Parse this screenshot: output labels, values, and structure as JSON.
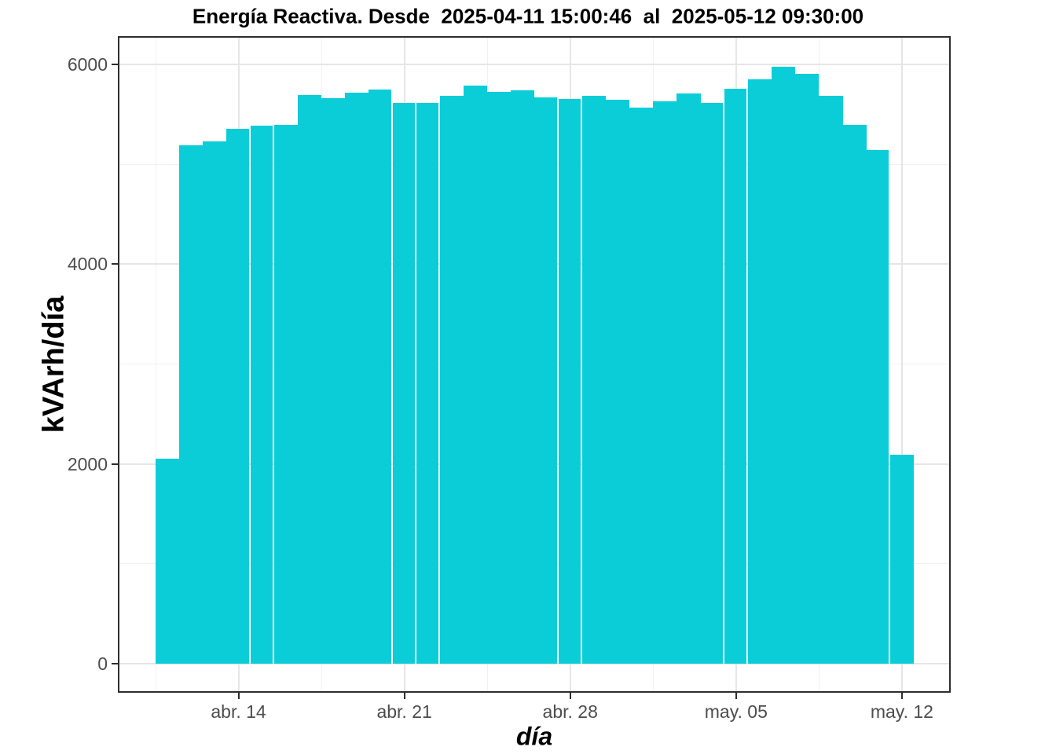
{
  "colors": {
    "bar_fill": "#0bcdd8",
    "grid_major": "#e6e6e6",
    "grid_minor": "#f1f1f1",
    "axis_text": "#4d4d4d",
    "panel_border": "#2e2e2e",
    "background": "#ffffff"
  },
  "chart_data": {
    "type": "bar",
    "title": "Energía Reactiva. Desde  2025-04-11 15:00:46  al  2025-05-12 09:30:00",
    "xlabel": "día",
    "ylabel": "kVArh/día",
    "ylim": [
      0,
      6000
    ],
    "grid": true,
    "legend_position": "none",
    "categories": [
      "2025-04-11",
      "2025-04-12",
      "2025-04-13",
      "2025-04-14",
      "2025-04-15",
      "2025-04-16",
      "2025-04-17",
      "2025-04-18",
      "2025-04-19",
      "2025-04-20",
      "2025-04-21",
      "2025-04-22",
      "2025-04-23",
      "2025-04-24",
      "2025-04-25",
      "2025-04-26",
      "2025-04-27",
      "2025-04-28",
      "2025-04-29",
      "2025-04-30",
      "2025-05-01",
      "2025-05-02",
      "2025-05-03",
      "2025-05-04",
      "2025-05-05",
      "2025-05-06",
      "2025-05-07",
      "2025-05-08",
      "2025-05-09",
      "2025-05-10",
      "2025-05-11",
      "2025-05-12"
    ],
    "values": [
      2050,
      5190,
      5235,
      5360,
      5385,
      5395,
      5695,
      5665,
      5720,
      5750,
      5615,
      5620,
      5685,
      5790,
      5730,
      5745,
      5675,
      5655,
      5690,
      5645,
      5570,
      5635,
      5715,
      5615,
      5755,
      5855,
      5975,
      5905,
      5685,
      5400,
      5145,
      2090
    ],
    "x_ticks": [
      {
        "label": "abr. 14",
        "day_index": 3
      },
      {
        "label": "abr. 21",
        "day_index": 10
      },
      {
        "label": "abr. 28",
        "day_index": 17
      },
      {
        "label": "may. 05",
        "day_index": 24
      },
      {
        "label": "may. 12",
        "day_index": 31
      }
    ],
    "y_ticks": [
      0,
      2000,
      4000,
      6000
    ],
    "y_minor_ticks": [
      1000,
      3000,
      5000
    ],
    "seam_after_day_index": [
      3,
      4,
      9,
      10,
      11,
      16,
      17,
      23,
      24,
      30
    ]
  }
}
